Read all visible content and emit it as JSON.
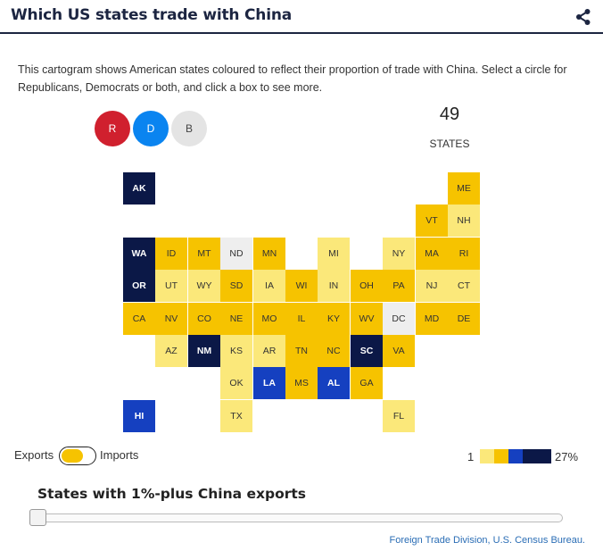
{
  "header": {
    "title": "Which US states trade with China"
  },
  "description": "This cartogram shows American states coloured to reflect their proportion of trade with China. Select a circle for Republicans, Democrats or both, and click a box to see more.",
  "party_filter": {
    "republican": "R",
    "democrat": "D",
    "both": "B"
  },
  "summary": {
    "count": "49",
    "label": "STATES"
  },
  "colors": {
    "light": "#fbe87a",
    "mid": "#f6c300",
    "blank": "#eeeeee",
    "blue": "#1540c0",
    "navy": "#0b1847",
    "republican": "#d0202e",
    "democrat": "#0a84f0"
  },
  "states": [
    {
      "code": "AK",
      "row": 0,
      "col": 0,
      "fill": "navy"
    },
    {
      "code": "ME",
      "row": 0,
      "col": 10,
      "fill": "mid"
    },
    {
      "code": "VT",
      "row": 1,
      "col": 9,
      "fill": "mid"
    },
    {
      "code": "NH",
      "row": 1,
      "col": 10,
      "fill": "light"
    },
    {
      "code": "WA",
      "row": 2,
      "col": 0,
      "fill": "navy"
    },
    {
      "code": "ID",
      "row": 2,
      "col": 1,
      "fill": "mid"
    },
    {
      "code": "MT",
      "row": 2,
      "col": 2,
      "fill": "mid"
    },
    {
      "code": "ND",
      "row": 2,
      "col": 3,
      "fill": "blank"
    },
    {
      "code": "MN",
      "row": 2,
      "col": 4,
      "fill": "mid"
    },
    {
      "code": "MI",
      "row": 2,
      "col": 6,
      "fill": "light"
    },
    {
      "code": "NY",
      "row": 2,
      "col": 8,
      "fill": "light"
    },
    {
      "code": "MA",
      "row": 2,
      "col": 9,
      "fill": "mid"
    },
    {
      "code": "RI",
      "row": 2,
      "col": 10,
      "fill": "mid"
    },
    {
      "code": "OR",
      "row": 3,
      "col": 0,
      "fill": "navy"
    },
    {
      "code": "UT",
      "row": 3,
      "col": 1,
      "fill": "light"
    },
    {
      "code": "WY",
      "row": 3,
      "col": 2,
      "fill": "light"
    },
    {
      "code": "SD",
      "row": 3,
      "col": 3,
      "fill": "mid"
    },
    {
      "code": "IA",
      "row": 3,
      "col": 4,
      "fill": "light"
    },
    {
      "code": "WI",
      "row": 3,
      "col": 5,
      "fill": "mid"
    },
    {
      "code": "IN",
      "row": 3,
      "col": 6,
      "fill": "light"
    },
    {
      "code": "OH",
      "row": 3,
      "col": 7,
      "fill": "mid"
    },
    {
      "code": "PA",
      "row": 3,
      "col": 8,
      "fill": "mid"
    },
    {
      "code": "NJ",
      "row": 3,
      "col": 9,
      "fill": "light"
    },
    {
      "code": "CT",
      "row": 3,
      "col": 10,
      "fill": "light"
    },
    {
      "code": "CA",
      "row": 4,
      "col": 0,
      "fill": "mid"
    },
    {
      "code": "NV",
      "row": 4,
      "col": 1,
      "fill": "mid"
    },
    {
      "code": "CO",
      "row": 4,
      "col": 2,
      "fill": "mid"
    },
    {
      "code": "NE",
      "row": 4,
      "col": 3,
      "fill": "mid"
    },
    {
      "code": "MO",
      "row": 4,
      "col": 4,
      "fill": "mid"
    },
    {
      "code": "IL",
      "row": 4,
      "col": 5,
      "fill": "mid"
    },
    {
      "code": "KY",
      "row": 4,
      "col": 6,
      "fill": "mid"
    },
    {
      "code": "WV",
      "row": 4,
      "col": 7,
      "fill": "mid"
    },
    {
      "code": "DC",
      "row": 4,
      "col": 8,
      "fill": "blank"
    },
    {
      "code": "MD",
      "row": 4,
      "col": 9,
      "fill": "mid"
    },
    {
      "code": "DE",
      "row": 4,
      "col": 10,
      "fill": "mid"
    },
    {
      "code": "AZ",
      "row": 5,
      "col": 1,
      "fill": "light"
    },
    {
      "code": "NM",
      "row": 5,
      "col": 2,
      "fill": "navy"
    },
    {
      "code": "KS",
      "row": 5,
      "col": 3,
      "fill": "light"
    },
    {
      "code": "AR",
      "row": 5,
      "col": 4,
      "fill": "light"
    },
    {
      "code": "TN",
      "row": 5,
      "col": 5,
      "fill": "mid"
    },
    {
      "code": "NC",
      "row": 5,
      "col": 6,
      "fill": "mid"
    },
    {
      "code": "SC",
      "row": 5,
      "col": 7,
      "fill": "navy"
    },
    {
      "code": "VA",
      "row": 5,
      "col": 8,
      "fill": "mid"
    },
    {
      "code": "OK",
      "row": 6,
      "col": 3,
      "fill": "light"
    },
    {
      "code": "LA",
      "row": 6,
      "col": 4,
      "fill": "blue"
    },
    {
      "code": "MS",
      "row": 6,
      "col": 5,
      "fill": "mid"
    },
    {
      "code": "AL",
      "row": 6,
      "col": 6,
      "fill": "blue"
    },
    {
      "code": "GA",
      "row": 6,
      "col": 7,
      "fill": "mid"
    },
    {
      "code": "HI",
      "row": 7,
      "col": 0,
      "fill": "blue"
    },
    {
      "code": "TX",
      "row": 7,
      "col": 3,
      "fill": "light"
    },
    {
      "code": "FL",
      "row": 7,
      "col": 8,
      "fill": "light"
    }
  ],
  "toggle": {
    "left_label": "Exports",
    "right_label": "Imports",
    "state": "exports"
  },
  "legend": {
    "min_label": "1",
    "max_label": "27%",
    "swatches": [
      "light",
      "mid",
      "blue",
      "navy"
    ]
  },
  "slider": {
    "title": "States with 1%-plus China exports",
    "value_fraction": 0
  },
  "source": "Foreign Trade Division, U.S. Census Bureau."
}
